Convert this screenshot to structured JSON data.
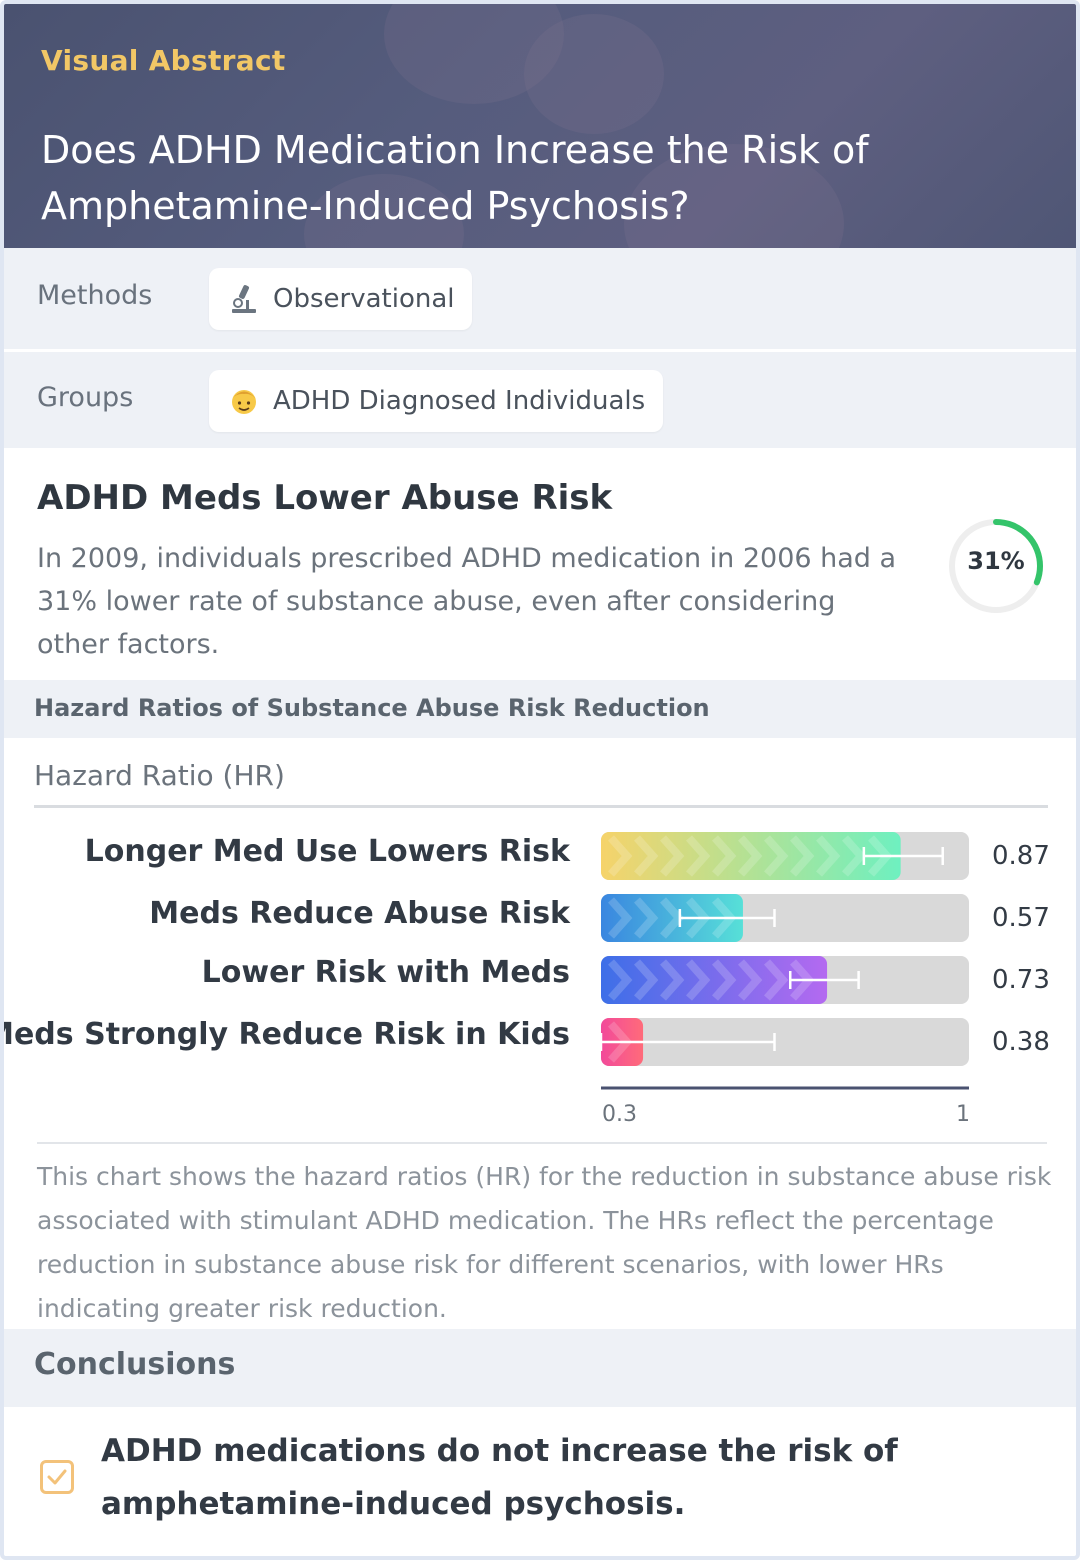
{
  "header": {
    "eyebrow": "Visual Abstract",
    "title": "Does ADHD Medication Increase the Risk of Amphetamine-Induced Psychosis?"
  },
  "methods": {
    "label": "Methods",
    "value": "Observational",
    "icon": "microscope-icon"
  },
  "groups": {
    "label": "Groups",
    "value": "ADHD Diagnosed Individuals",
    "icon": "person-icon"
  },
  "finding": {
    "title": "ADHD Meds Lower Abuse Risk",
    "text": "In 2009, individuals prescribed ADHD medication in 2006 had a 31% lower rate of substance abuse, even after considering other factors.",
    "ring_label": "31%",
    "ring_fraction": 0.31,
    "ring_color": "#34c46a"
  },
  "chart_section": {
    "title": "Hazard Ratios of Substance Abuse Risk Reduction",
    "subtitle": "Hazard Ratio (HR)",
    "caption": "This chart shows the hazard ratios (HR) for the reduction in substance abuse risk associated with stimulant ADHD medication. The HRs reflect the percentage reduction in substance abuse risk for different scenarios, with lower HRs indicating greater risk reduction."
  },
  "chart_data": {
    "type": "bar",
    "orientation": "horizontal",
    "xlim": [
      0.3,
      1
    ],
    "x_ticks": [
      "0.3",
      "1"
    ],
    "categories": [
      "Longer Med Use Lowers Risk",
      "Meds Reduce Abuse Risk",
      "Lower Risk with Meds",
      "Meds Strongly Reduce Risk in Kids"
    ],
    "values": [
      0.87,
      0.57,
      0.73,
      0.38
    ],
    "value_labels": [
      "0.87",
      "0.57",
      "0.73",
      "0.38"
    ],
    "error_low": [
      0.8,
      0.45,
      0.66,
      0.3
    ],
    "error_high": [
      0.95,
      0.63,
      0.79,
      0.63
    ],
    "bar_colors": [
      [
        "#f6d36a",
        "#6ef0c0"
      ],
      [
        "#3a86e0",
        "#57e0d8"
      ],
      [
        "#3d6fe8",
        "#b46af0"
      ],
      [
        "#f24a9a",
        "#ff6b7a"
      ]
    ],
    "track_color": "#d9d9d9"
  },
  "conclusions": {
    "title": "Conclusions",
    "text": "ADHD medications do not increase the risk of amphetamine-induced psychosis."
  }
}
